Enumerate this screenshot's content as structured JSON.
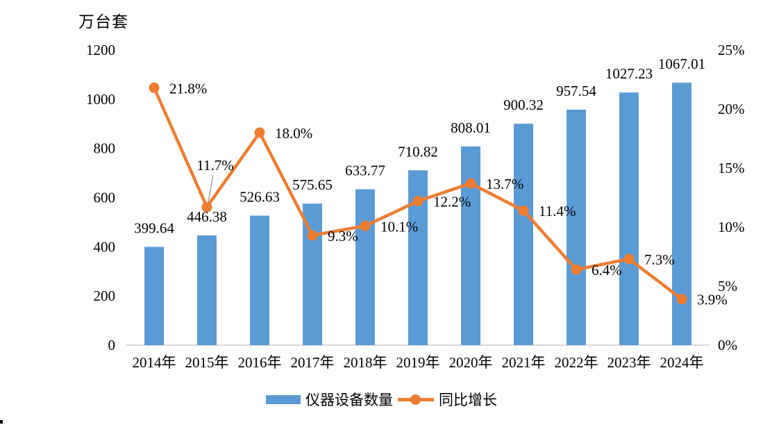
{
  "chart": {
    "unit_label": "万台套",
    "legend": {
      "bar_label": "仪器设备数量",
      "line_label": "同比增长"
    }
  },
  "colors": {
    "bar": "#5B9BD5",
    "line": "#ED7D31",
    "axis_line": "#D9D9D9",
    "leader_line": "#A6A6A6",
    "text": "#000000"
  },
  "chart_data": {
    "type": "combo-bar-line",
    "categories": [
      "2014年",
      "2015年",
      "2016年",
      "2017年",
      "2018年",
      "2019年",
      "2020年",
      "2021年",
      "2022年",
      "2023年",
      "2024年"
    ],
    "series": [
      {
        "name": "仪器设备数量",
        "type": "bar",
        "axis": "left",
        "color": "#5B9BD5",
        "values": [
          399.64,
          446.38,
          526.63,
          575.65,
          633.77,
          710.82,
          808.01,
          900.32,
          957.54,
          1027.23,
          1067.01
        ],
        "labels": [
          "399.64",
          "446.38",
          "526.63",
          "575.65",
          "633.77",
          "710.82",
          "808.01",
          "900.32",
          "957.54",
          "1027.23",
          "1067.01"
        ]
      },
      {
        "name": "同比增长",
        "type": "line",
        "axis": "right",
        "color": "#ED7D31",
        "values": [
          21.8,
          11.7,
          18.0,
          9.3,
          10.1,
          12.2,
          13.7,
          11.4,
          6.4,
          7.3,
          3.9
        ],
        "labels": [
          "21.8%",
          "11.7%",
          "18.0%",
          "9.3%",
          "10.1%",
          "12.2%",
          "13.7%",
          "11.4%",
          "6.4%",
          "7.3%",
          "3.9%"
        ],
        "label_placement": [
          "right",
          "above-leader",
          "right",
          "right",
          "right",
          "right",
          "right",
          "right",
          "right",
          "right",
          "right"
        ]
      }
    ],
    "left_axis": {
      "title": "万台套",
      "min": 0,
      "max": 1200,
      "step": 200,
      "tick_labels": [
        "0",
        "200",
        "400",
        "600",
        "800",
        "1000",
        "1200"
      ]
    },
    "right_axis": {
      "min": 0,
      "max": 25,
      "step": 5,
      "tick_labels": [
        "0%",
        "5%",
        "10%",
        "15%",
        "20%",
        "25%"
      ]
    },
    "grid": false,
    "legend_position": "bottom"
  }
}
